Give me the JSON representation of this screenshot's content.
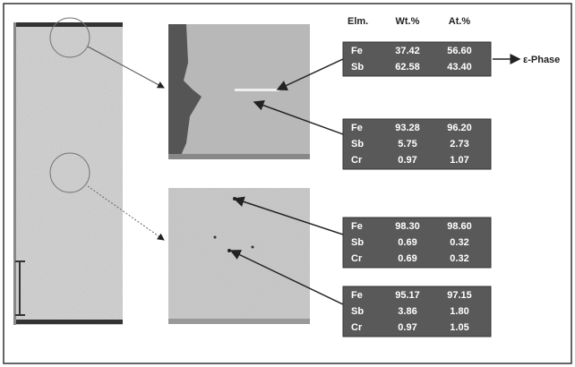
{
  "header": {
    "element": "Elm.",
    "weight": "Wt.%",
    "atomic": "At.%"
  },
  "phase_label": "ε-Phase",
  "tables": [
    {
      "rows": [
        [
          "Fe",
          "37.42",
          "56.60"
        ],
        [
          "Sb",
          "62.58",
          "43.40"
        ]
      ]
    },
    {
      "rows": [
        [
          "Fe",
          "93.28",
          "96.20"
        ],
        [
          "Sb",
          "5.75",
          "2.73"
        ],
        [
          "Cr",
          "0.97",
          "1.07"
        ]
      ]
    },
    {
      "rows": [
        [
          "Fe",
          "98.30",
          "98.60"
        ],
        [
          "Sb",
          "0.69",
          "0.32"
        ],
        [
          "Cr",
          "0.69",
          "0.32"
        ]
      ]
    },
    {
      "rows": [
        [
          "Fe",
          "95.17",
          "97.15"
        ],
        [
          "Sb",
          "3.86",
          "1.80"
        ],
        [
          "Cr",
          "0.97",
          "1.05"
        ]
      ]
    }
  ]
}
